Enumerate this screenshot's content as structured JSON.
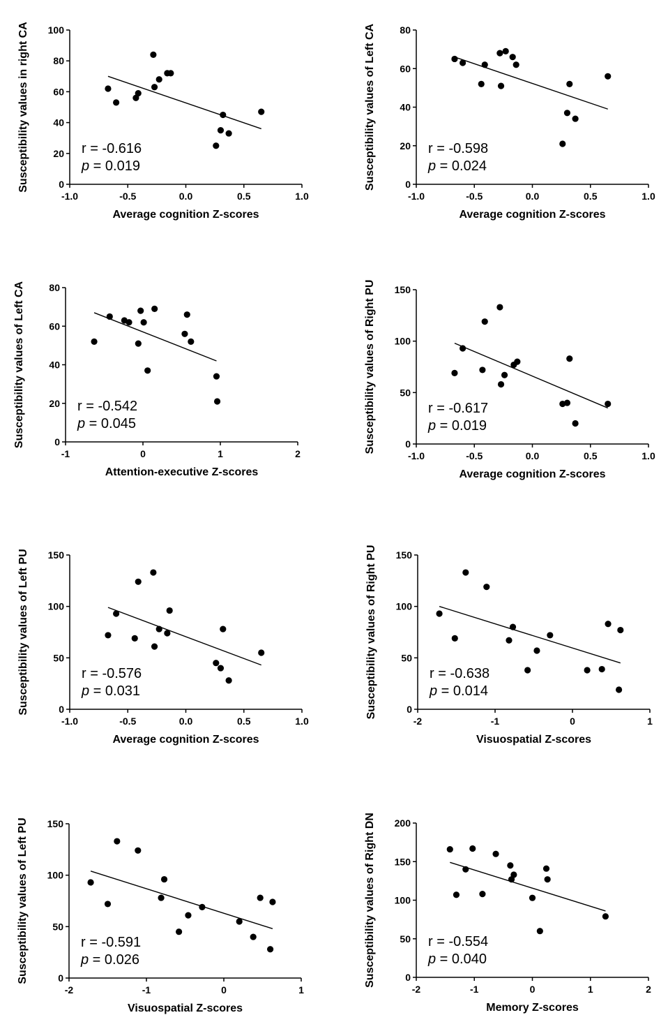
{
  "figure_title": "Correlation scatter plots: susceptibility values vs cognition Z-scores",
  "chart_data": [
    {
      "type": "scatter",
      "title": "",
      "xlabel": "Average cognition Z-scores",
      "ylabel": "Susceptibility values in right CA",
      "xlim": [
        -1.0,
        1.0
      ],
      "ylim": [
        0,
        100
      ],
      "xticks": [
        "-1.0",
        "-0.5",
        "0.0",
        "0.5",
        "1.0"
      ],
      "yticks": [
        "0",
        "20",
        "40",
        "60",
        "80",
        "100"
      ],
      "x": [
        -0.67,
        -0.6,
        -0.43,
        -0.41,
        -0.28,
        -0.27,
        -0.23,
        -0.16,
        -0.13,
        0.26,
        0.3,
        0.32,
        0.37,
        0.65
      ],
      "y": [
        62,
        53,
        56,
        59,
        84,
        63,
        68,
        72,
        72,
        25,
        35,
        45,
        33,
        47
      ],
      "fit": {
        "x": [
          -0.67,
          0.65
        ],
        "y": [
          70,
          36
        ]
      },
      "r": "r = -0.616",
      "p_label": "p",
      "p_value": " = 0.019"
    },
    {
      "type": "scatter",
      "title": "",
      "xlabel": "Average cognition Z-scores",
      "ylabel": "Susceptibility values of Left CA",
      "xlim": [
        -1.0,
        1.0
      ],
      "ylim": [
        0,
        80
      ],
      "xticks": [
        "-1.0",
        "-0.5",
        "0.0",
        "0.5",
        "1.0"
      ],
      "yticks": [
        "0",
        "20",
        "40",
        "60",
        "80"
      ],
      "x": [
        -0.67,
        -0.6,
        -0.44,
        -0.41,
        -0.28,
        -0.27,
        -0.23,
        -0.17,
        -0.14,
        0.26,
        0.3,
        0.32,
        0.37,
        0.65
      ],
      "y": [
        65,
        63,
        52,
        62,
        68,
        51,
        69,
        66,
        62,
        21,
        37,
        52,
        34,
        56
      ],
      "fit": {
        "x": [
          -0.67,
          0.65
        ],
        "y": [
          66,
          39
        ]
      },
      "r": "r = -0.598",
      "p_label": "p",
      "p_value": " = 0.024"
    },
    {
      "type": "scatter",
      "title": "",
      "xlabel": "Attention-executive Z-scores",
      "ylabel": "Susceptibility values of Left CA",
      "xlim": [
        -1,
        2
      ],
      "ylim": [
        0,
        80
      ],
      "xticks": [
        "-1",
        "0",
        "1",
        "2"
      ],
      "yticks": [
        "0",
        "20",
        "40",
        "60",
        "80"
      ],
      "x": [
        -0.63,
        -0.43,
        -0.24,
        -0.18,
        -0.06,
        -0.03,
        0.01,
        0.06,
        0.15,
        0.54,
        0.57,
        0.62,
        0.95,
        0.96
      ],
      "y": [
        52,
        65,
        63,
        62,
        51,
        68,
        62,
        37,
        69,
        56,
        66,
        52,
        34,
        21
      ],
      "fit": {
        "x": [
          -0.63,
          0.95
        ],
        "y": [
          67,
          42
        ]
      },
      "r": "r = -0.542",
      "p_label": "p",
      "p_value": " = 0.045"
    },
    {
      "type": "scatter",
      "title": "",
      "xlabel": "Average cognition Z-scores",
      "ylabel": "Susceptibility values of Right PU",
      "xlim": [
        -1.0,
        1.0
      ],
      "ylim": [
        0,
        150
      ],
      "xticks": [
        "-1.0",
        "-0.5",
        "0.0",
        "0.5",
        "1.0"
      ],
      "yticks": [
        "0",
        "50",
        "100",
        "150"
      ],
      "x": [
        -0.67,
        -0.6,
        -0.43,
        -0.41,
        -0.28,
        -0.27,
        -0.24,
        -0.16,
        -0.13,
        0.26,
        0.3,
        0.32,
        0.37,
        0.65
      ],
      "y": [
        69,
        93,
        72,
        119,
        133,
        58,
        67,
        77,
        80,
        39,
        40,
        83,
        20,
        39
      ],
      "fit": {
        "x": [
          -0.67,
          0.65
        ],
        "y": [
          98,
          35
        ]
      },
      "r": "r = -0.617",
      "p_label": "p",
      "p_value": " = 0.019"
    },
    {
      "type": "scatter",
      "title": "",
      "xlabel": "Average cognition Z-scores",
      "ylabel": "Susceptibility values of Left PU",
      "xlim": [
        -1.0,
        1.0
      ],
      "ylim": [
        0,
        150
      ],
      "xticks": [
        "-1.0",
        "-0.5",
        "0.0",
        "0.5",
        "1.0"
      ],
      "yticks": [
        "0",
        "50",
        "100",
        "150"
      ],
      "x": [
        -0.67,
        -0.6,
        -0.44,
        -0.41,
        -0.28,
        -0.27,
        -0.23,
        -0.16,
        -0.14,
        0.26,
        0.3,
        0.32,
        0.37,
        0.65
      ],
      "y": [
        72,
        93,
        69,
        124,
        133,
        61,
        78,
        74,
        96,
        45,
        40,
        78,
        28,
        55
      ],
      "fit": {
        "x": [
          -0.67,
          0.65
        ],
        "y": [
          99,
          43
        ]
      },
      "r": "r = -0.576",
      "p_label": "p",
      "p_value": " = 0.031"
    },
    {
      "type": "scatter",
      "title": "",
      "xlabel": "Visuospatial Z-scores",
      "ylabel": "Susceptibility values of Right PU",
      "xlim": [
        -2,
        1
      ],
      "ylim": [
        0,
        150
      ],
      "xticks": [
        "-2",
        "-1",
        "0",
        "1"
      ],
      "yticks": [
        "0",
        "50",
        "100",
        "150"
      ],
      "x": [
        -1.72,
        -1.52,
        -1.38,
        -1.11,
        -0.82,
        -0.77,
        -0.58,
        -0.46,
        -0.29,
        0.19,
        0.38,
        0.46,
        0.6,
        0.62
      ],
      "y": [
        93,
        69,
        133,
        119,
        67,
        80,
        38,
        57,
        72,
        38,
        39,
        83,
        19,
        77
      ],
      "fit": {
        "x": [
          -1.72,
          0.62
        ],
        "y": [
          100,
          45
        ]
      },
      "r": "r = -0.638",
      "p_label": "p",
      "p_value": " = 0.014"
    },
    {
      "type": "scatter",
      "title": "",
      "xlabel": "Visuospatial Z-scores",
      "ylabel": "Susceptibility values of Left PU",
      "xlim": [
        -2,
        1
      ],
      "ylim": [
        0,
        150
      ],
      "xticks": [
        "-2",
        "-1",
        "0",
        "1"
      ],
      "yticks": [
        "0",
        "50",
        "100",
        "150"
      ],
      "x": [
        -1.72,
        -1.5,
        -1.38,
        -1.11,
        -0.81,
        -0.77,
        -0.58,
        -0.46,
        -0.28,
        0.2,
        0.38,
        0.47,
        0.6,
        0.63
      ],
      "y": [
        93,
        72,
        133,
        124,
        78,
        96,
        45,
        61,
        69,
        55,
        40,
        78,
        28,
        74
      ],
      "fit": {
        "x": [
          -1.72,
          0.63
        ],
        "y": [
          104,
          48
        ]
      },
      "r": "r = -0.591",
      "p_label": "p",
      "p_value": " = 0.026"
    },
    {
      "type": "scatter",
      "title": "",
      "xlabel": "Memory Z-scores",
      "ylabel": "Susceptibility values of Right DN",
      "xlim": [
        -2,
        2
      ],
      "ylim": [
        0,
        200
      ],
      "xticks": [
        "-2",
        "-1",
        "0",
        "1",
        "2"
      ],
      "yticks": [
        "0",
        "50",
        "100",
        "150",
        "200"
      ],
      "x": [
        -1.42,
        -1.31,
        -1.15,
        -1.03,
        -0.86,
        -0.63,
        -0.38,
        -0.36,
        -0.32,
        0.0,
        0.13,
        0.24,
        0.26,
        1.26
      ],
      "y": [
        166,
        107,
        140,
        167,
        108,
        160,
        145,
        127,
        133,
        103,
        60,
        141,
        127,
        79
      ],
      "fit": {
        "x": [
          -1.42,
          1.26
        ],
        "y": [
          149,
          86
        ]
      },
      "r": "r = -0.554",
      "p_label": "p",
      "p_value": " = 0.040"
    }
  ]
}
